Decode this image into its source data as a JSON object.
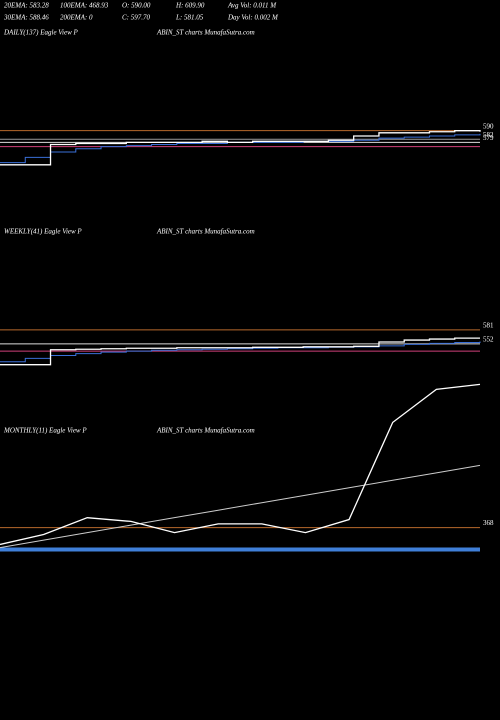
{
  "header": {
    "stats": [
      [
        "20EMA: 583.28",
        "100EMA: 468.93",
        "O: 590.00",
        "H: 609.90",
        "Avg Vol: 0.011 M"
      ],
      [
        "30EMA: 588.46",
        "200EMA: 0",
        "C: 597.70",
        "L: 581.05",
        "Day Vol: 0.002 M"
      ]
    ]
  },
  "chart_data": [
    {
      "type": "line",
      "title": "DAILY(137) Eagle  View  P",
      "subtitle": "ABIN_ST charts MunafaSutra.com",
      "ylim": [
        525,
        675
      ],
      "levels": [
        {
          "value": 590,
          "color": "#b8692c"
        },
        {
          "value": 582,
          "color": "#9a9a9a"
        },
        {
          "value": 579,
          "color": "#dddddd"
        },
        {
          "value": 575,
          "color": "#d0407a"
        }
      ],
      "series": [
        {
          "color": "#3a6fd8",
          "values": [
            560,
            565,
            570,
            573,
            575,
            576,
            577,
            578,
            578,
            579,
            579,
            579,
            580,
            580,
            581,
            583,
            584,
            585,
            586,
            587
          ]
        },
        {
          "color": "#ffffff",
          "values": [
            558,
            558,
            577,
            578,
            578,
            579,
            579,
            579,
            580,
            579,
            580,
            580,
            580,
            581,
            585,
            588,
            588,
            589,
            590,
            589
          ]
        }
      ]
    },
    {
      "type": "line",
      "title": "WEEKLY(41) Eagle  View  P",
      "subtitle": "ABIN_ST charts MunafaSutra.com",
      "ylim": [
        467,
        798
      ],
      "levels": [
        {
          "value": 581,
          "color": "#b8692c"
        },
        {
          "value": 552,
          "color": "#dddddd"
        },
        {
          "value": 537,
          "color": "#d0407a"
        }
      ],
      "series": [
        {
          "color": "#3a6fd8",
          "values": [
            515,
            522,
            528,
            532,
            535,
            537,
            539,
            540,
            541,
            542,
            543,
            544,
            544,
            545,
            546,
            548,
            551,
            553,
            555,
            557
          ]
        },
        {
          "color": "#ffffff",
          "values": [
            509,
            509,
            540,
            541,
            542,
            543,
            543,
            544,
            544,
            544,
            545,
            545,
            546,
            546,
            547,
            556,
            560,
            562,
            564,
            564
          ]
        }
      ]
    },
    {
      "type": "line",
      "title": "MONTHLY(11) Eagle  View  P",
      "subtitle": "ABIN_ST charts MunafaSutra.com",
      "ylim": [
        300,
        605
      ],
      "levels": [
        {
          "value": 368,
          "color": "#b8692c"
        },
        {
          "value": 333,
          "color": "#3f7fd8"
        }
      ],
      "series": [
        {
          "color": "#cccccc",
          "values": [
            336,
            348,
            360,
            372,
            384,
            396,
            408,
            420,
            432,
            444,
            456,
            468
          ]
        },
        {
          "color": "#ffffff",
          "values": [
            341,
            357,
            384,
            378,
            360,
            374,
            374,
            360,
            381,
            537,
            590,
            598
          ]
        }
      ]
    }
  ]
}
